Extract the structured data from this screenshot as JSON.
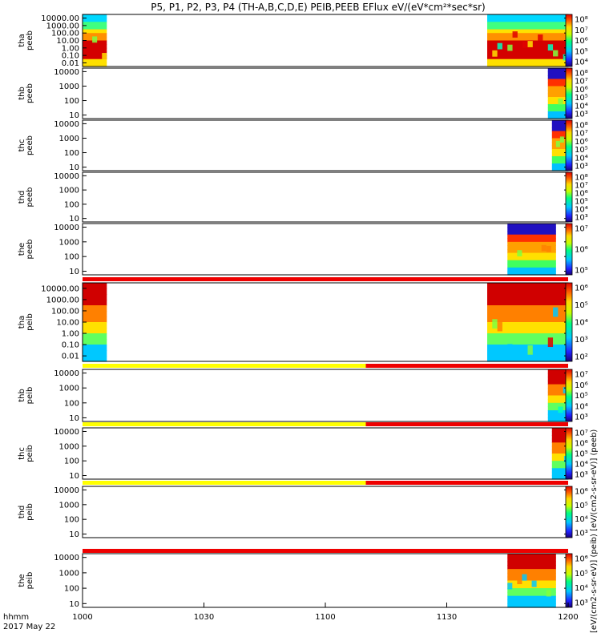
{
  "title": "P5, P1, P2, P3, P4 (TH-A,B,C,D,E) PEIB,PEEB EFlux eV/(eV*cm²*sec*sr)",
  "x_axis": {
    "labels": [
      "1000",
      "1030",
      "1100",
      "1130",
      "1200"
    ],
    "footer_line1": "hhmm",
    "footer_line2": "2017 May 22"
  },
  "colorbar_axis_label": "[eV/(cm2-s-sr-eV)] (peib)   [eV/(cm2-s-sr-eV)] (peeb)",
  "colors": {
    "red": "#ee0000",
    "yellow": "#ffff00",
    "black": "#000000"
  },
  "chart_data": {
    "type": "heatmap",
    "x_range_hhmm": [
      "1000",
      "1200"
    ],
    "panels": [
      {
        "id": "tha_peeb",
        "ylabel": [
          "tha",
          "peeb"
        ],
        "y_ticks": [
          "10000.00",
          "1000.00",
          "100.00",
          "10.00",
          "1.00",
          "0.10",
          "0.01"
        ],
        "cbar_ticks": [
          "10⁸",
          "10⁷",
          "10⁶",
          "10⁵",
          "10⁴"
        ],
        "data_segments": [
          [
            "1000",
            "1006"
          ],
          [
            "1140",
            "1200"
          ]
        ],
        "flag_bar": null
      },
      {
        "id": "thb_peeb",
        "ylabel": [
          "thb",
          "peeb"
        ],
        "y_ticks": [
          "10000",
          "1000",
          "100",
          "10"
        ],
        "cbar_ticks": [
          "10⁸",
          "10⁷",
          "10⁶",
          "10⁵",
          "10⁴",
          "10³"
        ],
        "data_segments": [
          [
            "1155",
            "1200"
          ]
        ],
        "flag_bar": null
      },
      {
        "id": "thc_peeb",
        "ylabel": [
          "thc",
          "peeb"
        ],
        "y_ticks": [
          "10000",
          "1000",
          "100",
          "10"
        ],
        "cbar_ticks": [
          "10⁸",
          "10⁷",
          "10⁶",
          "10⁵",
          "10⁴",
          "10³"
        ],
        "data_segments": [
          [
            "1156",
            "1200"
          ]
        ],
        "flag_bar": null
      },
      {
        "id": "thd_peeb",
        "ylabel": [
          "thd",
          "peeb"
        ],
        "y_ticks": [
          "10000",
          "1000",
          "100",
          "10"
        ],
        "cbar_ticks": [
          "10⁸",
          "10⁷",
          "10⁶",
          "10⁵",
          "10⁴",
          "10³"
        ],
        "data_segments": [],
        "flag_bar": null
      },
      {
        "id": "the_peeb",
        "ylabel": [
          "the",
          "peeb"
        ],
        "y_ticks": [
          "10000",
          "1000",
          "100",
          "10"
        ],
        "cbar_ticks": [
          "10⁷",
          "10⁶",
          "10⁵"
        ],
        "data_segments": [
          [
            "1145",
            "1157"
          ]
        ],
        "flag_bar": "red"
      },
      {
        "id": "tha_peib",
        "ylabel": [
          "tha",
          "peib"
        ],
        "y_ticks": [
          "10000.00",
          "1000.00",
          "100.00",
          "10.00",
          "1.00",
          "0.10",
          "0.01"
        ],
        "cbar_ticks": [
          "10⁶",
          "10⁵",
          "10⁴",
          "10³",
          "10²"
        ],
        "data_segments": [
          [
            "1000",
            "1006"
          ],
          [
            "1140",
            "1200"
          ]
        ],
        "flag_bar": "yellow-red"
      },
      {
        "id": "thb_peib",
        "ylabel": [
          "thb",
          "peib"
        ],
        "y_ticks": [
          "10000",
          "1000",
          "100",
          "10"
        ],
        "cbar_ticks": [
          "10⁷",
          "10⁶",
          "10⁵",
          "10⁴",
          "10³"
        ],
        "data_segments": [
          [
            "1155",
            "1200"
          ]
        ],
        "flag_bar": "yellow-red"
      },
      {
        "id": "thc_peib",
        "ylabel": [
          "thc",
          "peib"
        ],
        "y_ticks": [
          "10000",
          "1000",
          "100",
          "10"
        ],
        "cbar_ticks": [
          "10⁷",
          "10⁶",
          "10⁵",
          "10⁴",
          "10³"
        ],
        "data_segments": [
          [
            "1156",
            "1200"
          ]
        ],
        "flag_bar": "yellow-red"
      },
      {
        "id": "thd_peib",
        "ylabel": [
          "thd",
          "peib"
        ],
        "y_ticks": [
          "10000",
          "1000",
          "100",
          "10"
        ],
        "cbar_ticks": [
          "10⁶",
          "10⁵",
          "10⁴",
          "10³"
        ],
        "data_segments": [],
        "flag_bar": "red"
      },
      {
        "id": "the_peib",
        "ylabel": [
          "the",
          "peib"
        ],
        "y_ticks": [
          "10000",
          "1000",
          "100",
          "10"
        ],
        "cbar_ticks": [
          "10⁶",
          "10⁵",
          "10⁴",
          "10³"
        ],
        "data_segments": [
          [
            "1145",
            "1157"
          ]
        ],
        "flag_bar": null
      }
    ]
  }
}
